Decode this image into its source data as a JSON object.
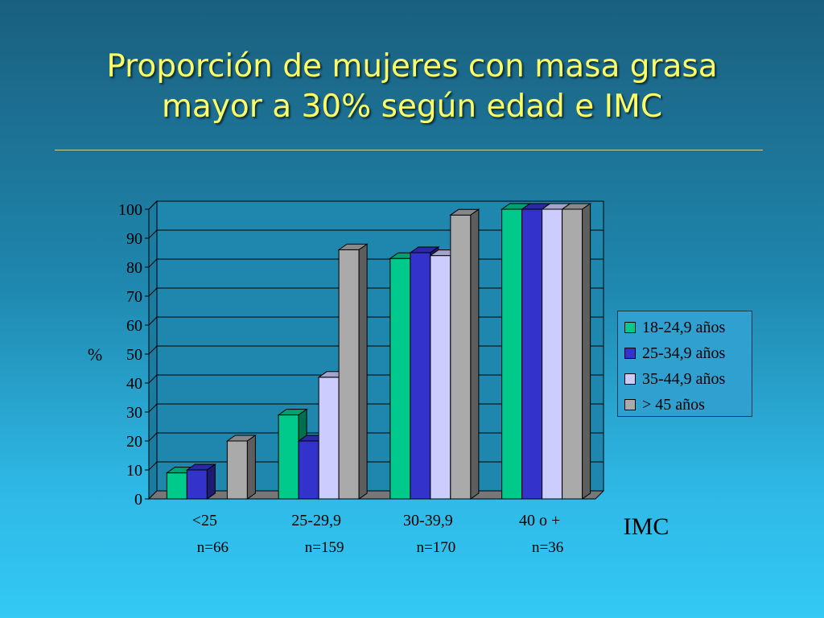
{
  "slide": {
    "title_line1": "Proporción de mujeres con masa grasa",
    "title_line2": "mayor a 30% según edad e IMC"
  },
  "chart_data": {
    "type": "bar",
    "title": "",
    "ylabel": "%",
    "xlabel": "IMC",
    "ylim": [
      0,
      100
    ],
    "yticks": [
      0,
      10,
      20,
      30,
      40,
      50,
      60,
      70,
      80,
      90,
      100
    ],
    "categories": [
      "<25",
      "25-29,9",
      "30-39,9",
      "40 o +"
    ],
    "sample_sizes": [
      "n=66",
      "n=159",
      "n=170",
      "n=36"
    ],
    "series": [
      {
        "name": "18-24,9 años",
        "color": "#00c98c",
        "values": [
          9,
          29,
          83,
          100
        ]
      },
      {
        "name": "25-34,9 años",
        "color": "#3333cc",
        "values": [
          10,
          20,
          85,
          100
        ]
      },
      {
        "name": "35-44,9 años",
        "color": "#ccccff",
        "values": [
          0,
          42,
          84,
          100
        ]
      },
      {
        "name": "> 45 años",
        "color": "#aaaaaa",
        "values": [
          20,
          86,
          98,
          100
        ]
      }
    ],
    "grid": true,
    "legend_position": "right",
    "style": "3d-clustered-bar"
  }
}
